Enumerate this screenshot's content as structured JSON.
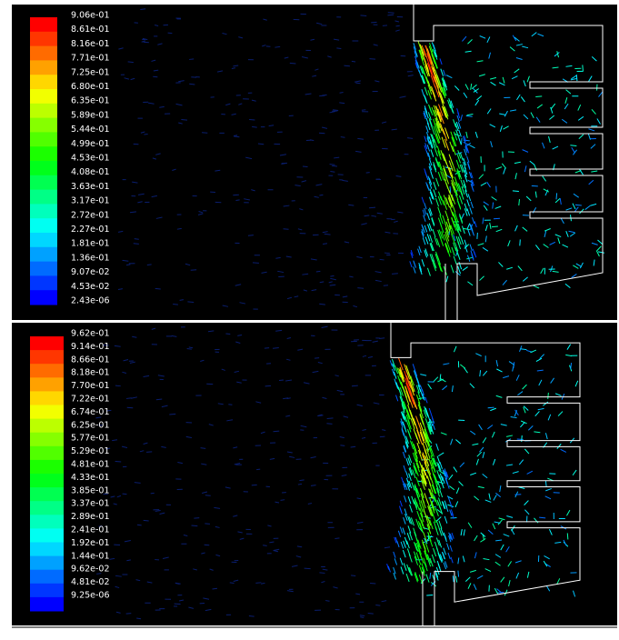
{
  "panels": [
    {
      "legend_labels": [
        "9.06e-01",
        "8.61e-01",
        "8.16e-01",
        "7.71e-01",
        "7.25e-01",
        "6.80e-01",
        "6.35e-01",
        "5.89e-01",
        "5.44e-01",
        "4.99e-01",
        "4.53e-01",
        "4.08e-01",
        "3.63e-01",
        "3.17e-01",
        "2.72e-01",
        "2.27e-01",
        "1.81e-01",
        "1.36e-01",
        "9.07e-02",
        "4.53e-02",
        "2.43e-06"
      ]
    },
    {
      "legend_labels": [
        "9.62e-01",
        "9.14e-01",
        "8.66e-01",
        "8.18e-01",
        "7.70e-01",
        "7.22e-01",
        "6.74e-01",
        "6.25e-01",
        "5.77e-01",
        "5.29e-01",
        "4.81e-01",
        "4.33e-01",
        "3.85e-01",
        "3.37e-01",
        "2.89e-01",
        "2.41e-01",
        "1.92e-01",
        "1.44e-01",
        "9.62e-02",
        "4.81e-02",
        "9.25e-06"
      ]
    }
  ]
}
